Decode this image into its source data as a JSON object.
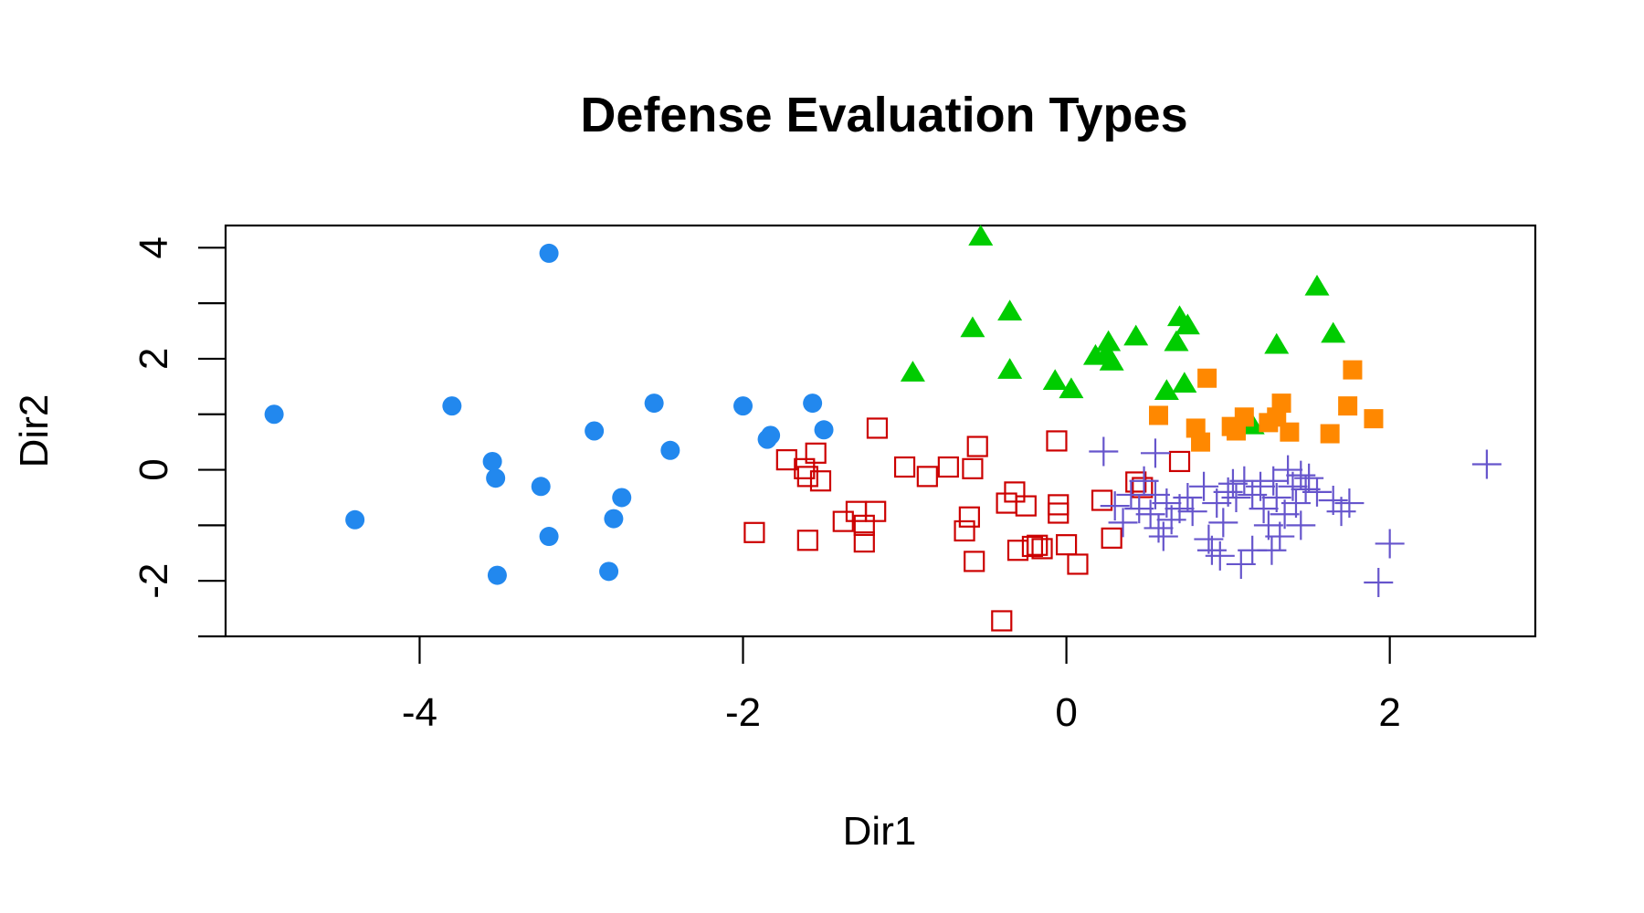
{
  "chart_data": {
    "type": "scatter",
    "title": "Defense Evaluation Types",
    "xlabel": "Dir1",
    "ylabel": "Dir2",
    "xlim": [
      -5.2,
      2.9
    ],
    "ylim": [
      -3.0,
      4.4
    ],
    "xticks": [
      {
        "value": -4,
        "label": "-4"
      },
      {
        "value": -2,
        "label": "-2"
      },
      {
        "value": 0,
        "label": "0"
      },
      {
        "value": 2,
        "label": "2"
      }
    ],
    "yticks": [
      {
        "value": -2,
        "label": "-2"
      },
      {
        "value": 0,
        "label": "0"
      },
      {
        "value": 2,
        "label": "2"
      },
      {
        "value": 4,
        "label": "4"
      }
    ],
    "yminor_ticks": [
      -3,
      -1,
      1,
      3
    ],
    "grid": false,
    "legend": "none",
    "series": [
      {
        "marker": "filled-circle",
        "color": "#2288EE",
        "points": [
          [
            -4.9,
            1.0
          ],
          [
            -4.4,
            -0.9
          ],
          [
            -3.8,
            1.15
          ],
          [
            -3.55,
            0.15
          ],
          [
            -3.53,
            -0.15
          ],
          [
            -3.52,
            -1.9
          ],
          [
            -3.25,
            -0.3
          ],
          [
            -3.2,
            -1.2
          ],
          [
            -3.2,
            3.9
          ],
          [
            -2.92,
            0.7
          ],
          [
            -2.8,
            -0.88
          ],
          [
            -2.83,
            -1.83
          ],
          [
            -2.75,
            -0.5
          ],
          [
            -2.55,
            1.2
          ],
          [
            -2.45,
            0.35
          ],
          [
            -2.0,
            1.15
          ],
          [
            -1.85,
            0.55
          ],
          [
            -1.83,
            0.62
          ],
          [
            -1.57,
            1.2
          ],
          [
            -1.5,
            0.72
          ]
        ]
      },
      {
        "marker": "open-square",
        "color": "#CC0000",
        "points": [
          [
            -1.93,
            -1.13
          ],
          [
            -1.73,
            0.18
          ],
          [
            -1.62,
            0.02
          ],
          [
            -1.6,
            -0.12
          ],
          [
            -1.6,
            -1.27
          ],
          [
            -1.55,
            0.3
          ],
          [
            -1.52,
            -0.2
          ],
          [
            -1.38,
            -0.93
          ],
          [
            -1.3,
            -0.75
          ],
          [
            -1.25,
            -1.0
          ],
          [
            -1.25,
            -1.3
          ],
          [
            -1.18,
            -0.75
          ],
          [
            -1.17,
            0.75
          ],
          [
            -1.0,
            0.05
          ],
          [
            -0.86,
            -0.12
          ],
          [
            -0.73,
            0.05
          ],
          [
            -0.63,
            -1.1
          ],
          [
            -0.6,
            -0.85
          ],
          [
            -0.58,
            0.02
          ],
          [
            -0.57,
            -1.65
          ],
          [
            -0.55,
            0.42
          ],
          [
            -0.4,
            -2.72
          ],
          [
            -0.37,
            -0.6
          ],
          [
            -0.32,
            -0.4
          ],
          [
            -0.3,
            -1.45
          ],
          [
            -0.25,
            -0.65
          ],
          [
            -0.21,
            -1.38
          ],
          [
            -0.18,
            -1.36
          ],
          [
            -0.15,
            -1.42
          ],
          [
            -0.06,
            0.52
          ],
          [
            -0.05,
            -0.63
          ],
          [
            -0.05,
            -0.78
          ],
          [
            0.0,
            -1.35
          ],
          [
            0.07,
            -1.7
          ],
          [
            0.22,
            -0.55
          ],
          [
            0.28,
            -1.23
          ],
          [
            0.43,
            -0.22
          ],
          [
            0.47,
            -0.32
          ],
          [
            0.7,
            0.15
          ]
        ]
      },
      {
        "marker": "filled-triangle",
        "color": "#00CC00",
        "points": [
          [
            -0.95,
            1.75
          ],
          [
            -0.58,
            2.55
          ],
          [
            -0.53,
            4.2
          ],
          [
            -0.35,
            1.8
          ],
          [
            -0.35,
            2.85
          ],
          [
            -0.07,
            1.6
          ],
          [
            0.03,
            1.45
          ],
          [
            0.18,
            2.05
          ],
          [
            0.25,
            2.1
          ],
          [
            0.26,
            2.3
          ],
          [
            0.28,
            1.95
          ],
          [
            0.43,
            2.4
          ],
          [
            0.62,
            1.42
          ],
          [
            0.68,
            2.3
          ],
          [
            0.7,
            2.75
          ],
          [
            0.73,
            1.55
          ],
          [
            0.75,
            2.6
          ],
          [
            1.15,
            0.8
          ],
          [
            1.3,
            2.25
          ],
          [
            1.55,
            3.3
          ],
          [
            1.65,
            2.45
          ]
        ]
      },
      {
        "marker": "filled-square",
        "color": "#FF8800",
        "points": [
          [
            0.57,
            0.98
          ],
          [
            0.8,
            0.75
          ],
          [
            0.83,
            0.5
          ],
          [
            0.87,
            1.65
          ],
          [
            1.02,
            0.78
          ],
          [
            1.05,
            0.7
          ],
          [
            1.1,
            0.95
          ],
          [
            1.25,
            0.85
          ],
          [
            1.3,
            0.95
          ],
          [
            1.33,
            1.2
          ],
          [
            1.38,
            0.68
          ],
          [
            1.63,
            0.65
          ],
          [
            1.74,
            1.15
          ],
          [
            1.77,
            1.8
          ],
          [
            1.9,
            0.92
          ]
        ]
      },
      {
        "marker": "plus",
        "color": "#6655CC",
        "points": [
          [
            0.23,
            0.33
          ],
          [
            0.3,
            -0.65
          ],
          [
            0.35,
            -0.95
          ],
          [
            0.4,
            -0.45
          ],
          [
            0.45,
            -0.7
          ],
          [
            0.48,
            -0.2
          ],
          [
            0.52,
            -0.8
          ],
          [
            0.55,
            -0.45
          ],
          [
            0.55,
            0.3
          ],
          [
            0.57,
            -1.05
          ],
          [
            0.6,
            -1.2
          ],
          [
            0.62,
            -0.6
          ],
          [
            0.65,
            -0.9
          ],
          [
            0.7,
            -0.7
          ],
          [
            0.75,
            -0.5
          ],
          [
            0.78,
            -0.75
          ],
          [
            0.85,
            -0.3
          ],
          [
            0.88,
            -1.25
          ],
          [
            0.9,
            -1.45
          ],
          [
            0.93,
            -0.6
          ],
          [
            0.95,
            -1.55
          ],
          [
            0.97,
            -0.95
          ],
          [
            1.0,
            -0.4
          ],
          [
            1.03,
            -0.25
          ],
          [
            1.05,
            -0.5
          ],
          [
            1.08,
            -1.7
          ],
          [
            1.1,
            -0.2
          ],
          [
            1.15,
            -0.45
          ],
          [
            1.15,
            -1.45
          ],
          [
            1.2,
            -0.3
          ],
          [
            1.22,
            -0.7
          ],
          [
            1.25,
            -1.0
          ],
          [
            1.27,
            -1.45
          ],
          [
            1.28,
            -0.2
          ],
          [
            1.3,
            -0.5
          ],
          [
            1.32,
            -1.2
          ],
          [
            1.35,
            -0.8
          ],
          [
            1.37,
            0.0
          ],
          [
            1.4,
            -0.3
          ],
          [
            1.42,
            -0.6
          ],
          [
            1.45,
            -0.1
          ],
          [
            1.45,
            -1.0
          ],
          [
            1.48,
            -0.35
          ],
          [
            1.5,
            -0.15
          ],
          [
            1.55,
            -0.4
          ],
          [
            1.65,
            -0.55
          ],
          [
            1.7,
            -0.75
          ],
          [
            1.75,
            -0.6
          ],
          [
            1.93,
            -2.03
          ],
          [
            2.0,
            -1.33
          ],
          [
            2.6,
            0.1
          ]
        ]
      }
    ]
  }
}
